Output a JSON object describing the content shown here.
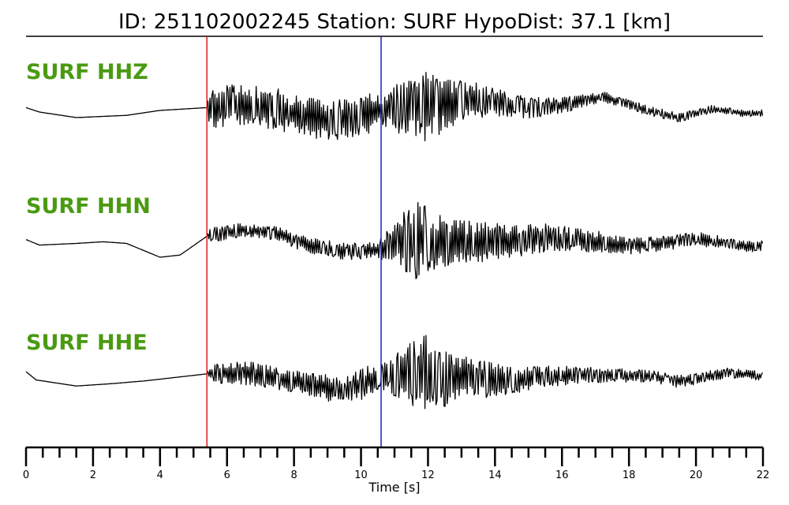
{
  "title": "ID: 251102002245   Station: SURF   HypoDist:    37.1 [km]",
  "chart_data": {
    "type": "line",
    "xlabel": "Time [s]",
    "xlim": [
      0,
      22
    ],
    "x_ticks": [
      0,
      2,
      4,
      6,
      8,
      10,
      12,
      14,
      16,
      18,
      20,
      22
    ],
    "minor_tick_step": 0.5,
    "grid": false,
    "label_color": "#4a9a12",
    "trace_color": "#000000",
    "picks": [
      {
        "phase": "P",
        "time": 5.4,
        "color": "#e31a1c"
      },
      {
        "phase": "S",
        "time": 10.6,
        "color": "#1f1fbf"
      }
    ],
    "series": [
      {
        "name": "SURF HHZ",
        "noise": [
          [
            0,
            0
          ],
          [
            5.4,
            0
          ],
          [
            5.5,
            0.42
          ],
          [
            7.5,
            0.38
          ],
          [
            10.5,
            0.36
          ],
          [
            10.6,
            0.28
          ],
          [
            11.8,
            0.72
          ],
          [
            13,
            0.38
          ],
          [
            14.5,
            0.22
          ],
          [
            17,
            0.1
          ],
          [
            22,
            0.06
          ]
        ],
        "trend": [
          [
            0,
            -0.02
          ],
          [
            0.4,
            -0.1
          ],
          [
            1.5,
            -0.2
          ],
          [
            3,
            -0.16
          ],
          [
            4,
            -0.07
          ],
          [
            5.4,
            -0.02
          ],
          [
            6.5,
            0.05
          ],
          [
            7.5,
            -0.05
          ],
          [
            8.5,
            -0.22
          ],
          [
            9.5,
            -0.24
          ],
          [
            10.5,
            -0.08
          ],
          [
            12,
            0.04
          ],
          [
            13.5,
            0.1
          ],
          [
            15,
            -0.02
          ],
          [
            16,
            0.02
          ],
          [
            17.2,
            0.18
          ],
          [
            18.5,
            -0.06
          ],
          [
            19.5,
            -0.2
          ],
          [
            20.5,
            -0.04
          ],
          [
            21.4,
            -0.12
          ],
          [
            22,
            -0.12
          ]
        ]
      },
      {
        "name": "SURF HHN",
        "noise": [
          [
            0,
            0
          ],
          [
            5.4,
            0
          ],
          [
            5.5,
            0.14
          ],
          [
            7,
            0.12
          ],
          [
            9,
            0.16
          ],
          [
            10.5,
            0.14
          ],
          [
            10.6,
            0.22
          ],
          [
            11.2,
            0.5
          ],
          [
            11.6,
            0.72
          ],
          [
            12.5,
            0.45
          ],
          [
            14.5,
            0.3
          ],
          [
            16,
            0.25
          ],
          [
            18,
            0.15
          ],
          [
            22,
            0.1
          ]
        ],
        "trend": [
          [
            0,
            0.02
          ],
          [
            0.4,
            -0.08
          ],
          [
            1.5,
            -0.05
          ],
          [
            2.3,
            -0.02
          ],
          [
            3,
            -0.05
          ],
          [
            4,
            -0.3
          ],
          [
            4.6,
            -0.26
          ],
          [
            5.4,
            0.08
          ],
          [
            6.5,
            0.2
          ],
          [
            7.5,
            0.12
          ],
          [
            8.5,
            -0.1
          ],
          [
            9.5,
            -0.2
          ],
          [
            10.5,
            -0.17
          ],
          [
            11.5,
            0.02
          ],
          [
            13,
            -0.03
          ],
          [
            14.5,
            -0.02
          ],
          [
            15.5,
            0.05
          ],
          [
            17,
            -0.02
          ],
          [
            18,
            -0.1
          ],
          [
            19,
            -0.05
          ],
          [
            20,
            0.04
          ],
          [
            21.4,
            -0.1
          ],
          [
            22,
            -0.1
          ]
        ]
      },
      {
        "name": "SURF HHE",
        "noise": [
          [
            0,
            0
          ],
          [
            5.4,
            0
          ],
          [
            5.5,
            0.16
          ],
          [
            6.5,
            0.22
          ],
          [
            8,
            0.2
          ],
          [
            10,
            0.28
          ],
          [
            10.6,
            0.25
          ],
          [
            11.3,
            0.55
          ],
          [
            11.8,
            0.75
          ],
          [
            12.5,
            0.55
          ],
          [
            13.5,
            0.35
          ],
          [
            15,
            0.22
          ],
          [
            17,
            0.14
          ],
          [
            22,
            0.08
          ]
        ],
        "trend": [
          [
            0,
            0.1
          ],
          [
            0.3,
            -0.05
          ],
          [
            1.5,
            -0.16
          ],
          [
            2.5,
            -0.12
          ],
          [
            3.5,
            -0.07
          ],
          [
            5.4,
            0.06
          ],
          [
            6.5,
            0.08
          ],
          [
            7.5,
            -0.02
          ],
          [
            8.5,
            -0.12
          ],
          [
            9.5,
            -0.28
          ],
          [
            10.3,
            -0.04
          ],
          [
            11,
            0.08
          ],
          [
            12,
            0.05
          ],
          [
            13.5,
            -0.04
          ],
          [
            14.5,
            -0.06
          ],
          [
            15.5,
            0.02
          ],
          [
            17,
            0.04
          ],
          [
            18.5,
            0.02
          ],
          [
            19.5,
            -0.08
          ],
          [
            21,
            0.08
          ],
          [
            22,
            0.02
          ]
        ]
      }
    ]
  }
}
